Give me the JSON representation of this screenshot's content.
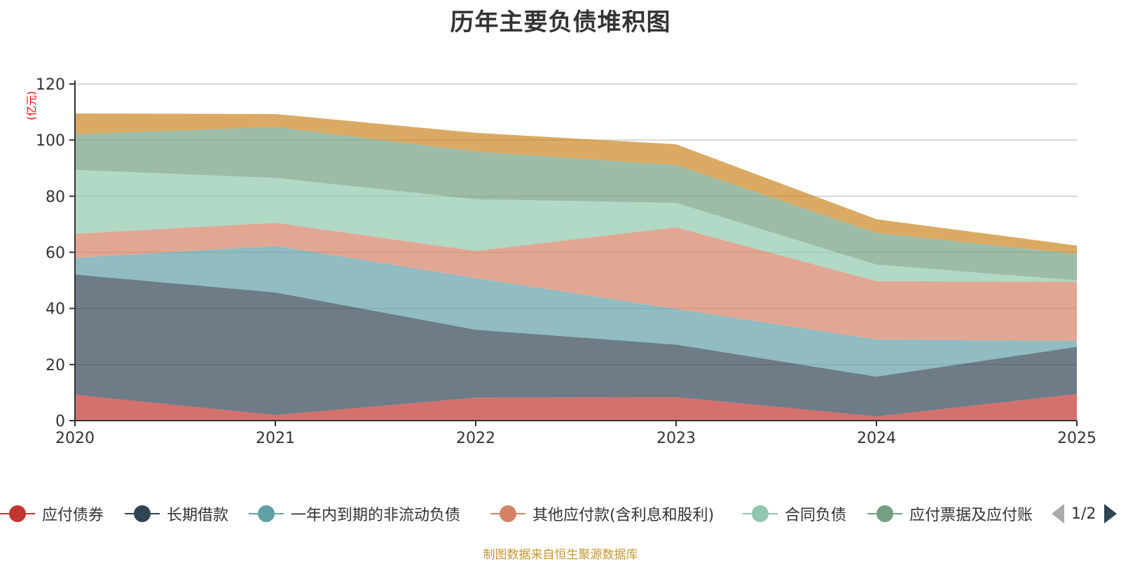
{
  "title": "历年主要负债堆积图",
  "footer": "制图数据来自恒生聚源数据库",
  "chart_data": {
    "type": "area",
    "stacked": true,
    "title": "历年主要负债堆积图",
    "xlabel": "",
    "ylabel": "(亿元)",
    "x": [
      "2020",
      "2021",
      "2022",
      "2023",
      "2024",
      "2025"
    ],
    "ylim": [
      0,
      120
    ],
    "yticks": [
      0,
      20,
      40,
      60,
      80,
      100,
      120
    ],
    "grid": true,
    "legend_position": "bottom",
    "series": [
      {
        "name": "应付债券",
        "color": "#c23531",
        "values": [
          9.2,
          2.0,
          8.2,
          8.4,
          1.5,
          9.5
        ]
      },
      {
        "name": "长期借款",
        "color": "#2f4554",
        "values": [
          42.9,
          43.7,
          24.2,
          18.7,
          14.2,
          16.8
        ]
      },
      {
        "name": "一年内到期的非流动负债",
        "color": "#61a0a8",
        "values": [
          5.9,
          16.6,
          18.4,
          12.7,
          13.2,
          2.1
        ]
      },
      {
        "name": "其他应付款(含利息和股利)",
        "color": "#d48265",
        "values": [
          8.6,
          8.2,
          9.7,
          29.1,
          20.8,
          21.1
        ]
      },
      {
        "name": "合同负债",
        "color": "#91c7ae",
        "values": [
          22.8,
          16.0,
          18.4,
          8.7,
          5.9,
          0.5
        ]
      },
      {
        "name": "应付票据及应付账款",
        "color": "#749f83",
        "values": [
          12.7,
          18.2,
          17.0,
          13.5,
          11.3,
          9.4
        ]
      },
      {
        "name": "",
        "color": "#ca8622",
        "values": [
          7.4,
          4.6,
          6.7,
          7.4,
          4.9,
          3.0
        ]
      }
    ]
  },
  "legend": {
    "items": [
      {
        "label": "应付债券",
        "color": "#c23531"
      },
      {
        "label": "长期借款",
        "color": "#2f4554"
      },
      {
        "label": "一年内到期的非流动负债",
        "color": "#61a0a8"
      },
      {
        "label": "其他应付款(含利息和股利)",
        "color": "#d48265"
      },
      {
        "label": "合同负债",
        "color": "#91c7ae"
      },
      {
        "label": "应付票据及应付账",
        "color": "#749f83"
      }
    ],
    "page": "1/2",
    "prev_icon": "triangle-left-icon",
    "next_icon": "triangle-right-icon"
  }
}
